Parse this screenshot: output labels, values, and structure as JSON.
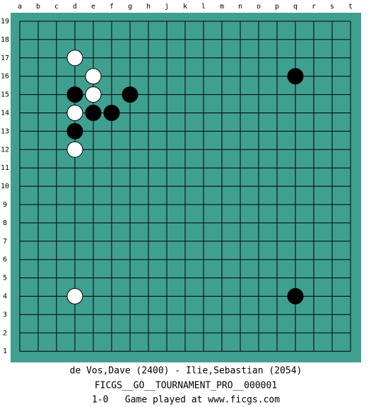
{
  "board": {
    "columns": [
      "a",
      "b",
      "c",
      "d",
      "e",
      "f",
      "g",
      "h",
      "j",
      "k",
      "l",
      "m",
      "n",
      "o",
      "p",
      "q",
      "r",
      "s",
      "t"
    ],
    "rows": [
      19,
      18,
      17,
      16,
      15,
      14,
      13,
      12,
      11,
      10,
      9,
      8,
      7,
      6,
      5,
      4,
      3,
      2,
      1
    ],
    "stones": [
      {
        "color": "white",
        "col": "d",
        "row": 17
      },
      {
        "color": "white",
        "col": "e",
        "row": 16
      },
      {
        "color": "black",
        "col": "q",
        "row": 16
      },
      {
        "color": "black",
        "col": "d",
        "row": 15
      },
      {
        "color": "white",
        "col": "e",
        "row": 15
      },
      {
        "color": "black",
        "col": "g",
        "row": 15
      },
      {
        "color": "white",
        "col": "d",
        "row": 14
      },
      {
        "color": "black",
        "col": "e",
        "row": 14
      },
      {
        "color": "black",
        "col": "f",
        "row": 14
      },
      {
        "color": "black",
        "col": "d",
        "row": 13
      },
      {
        "color": "white",
        "col": "d",
        "row": 12
      },
      {
        "color": "white",
        "col": "d",
        "row": 4
      },
      {
        "color": "black",
        "col": "q",
        "row": 4
      }
    ]
  },
  "caption": {
    "players": "de Vos,Dave (2400) - Ilie,Sebastian (2054)",
    "event": "FICGS__GO__TOURNAMENT_PRO__000001",
    "result": "1-0   Game played at www.ficgs.com"
  }
}
